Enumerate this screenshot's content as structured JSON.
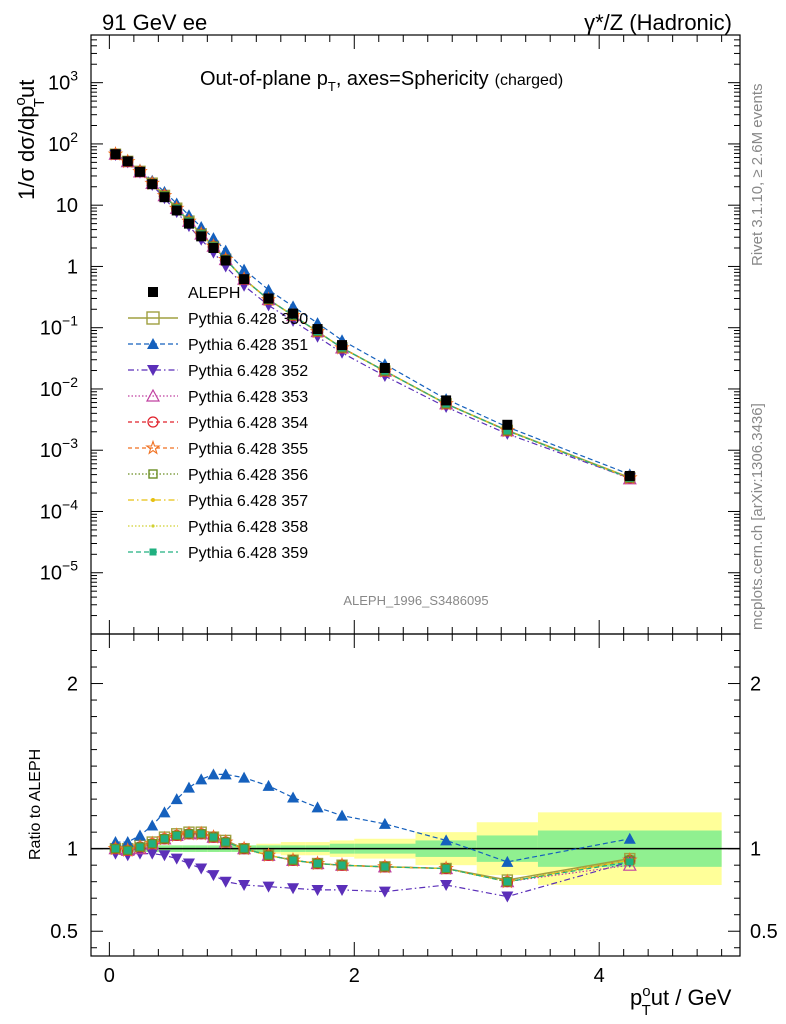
{
  "header": {
    "left": "91 GeV ee",
    "right": "γ*/Z (Hadronic)"
  },
  "side": {
    "rivet": "Rivet 3.1.10, ≥ 2.6M events",
    "mcplots": "mcplots.cern.ch [arXiv:1306.3436]"
  },
  "colors": {
    "data": "#000000",
    "350": "#a0a040",
    "351": "#1560bd",
    "352": "#5b2fb9",
    "353": "#c040a0",
    "354": "#e0202a",
    "355": "#f07020",
    "356": "#6b8e23",
    "357": "#e6c010",
    "358": "#d0d030",
    "359": "#20b080",
    "band_inner": "#90f090",
    "band_outer": "#ffff99"
  },
  "chart_data": {
    "type": "line",
    "title": "Out-of-plane p",
    "title_sub": "T",
    "title_rest": ", axes=Sphericity",
    "title_small": "(charged)",
    "watermark": "ALEPH_1996_S3486095",
    "ylabel": "1/σ dσ/dp",
    "ylabel_sup": "o",
    "ylabel_sub": "T",
    "ylabel_rest": "ut",
    "xlabel_main": "p",
    "xlabel_sup": "o",
    "xlabel_sub": "T",
    "xlabel_rest": "ut / GeV",
    "ratio_ylabel": "Ratio to ALEPH",
    "xlim": [
      -0.15,
      5.15
    ],
    "ylim_log": [
      1e-06,
      6000
    ],
    "ratio_ylim": [
      0.35,
      2.3
    ],
    "x_ticks": [
      "0",
      "2",
      "4"
    ],
    "y_ticks": [
      {
        "v": 1000,
        "m": "10",
        "e": "3"
      },
      {
        "v": 100,
        "m": "10",
        "e": "2"
      },
      {
        "v": 10,
        "m": "10",
        "e": ""
      },
      {
        "v": 1,
        "m": "1",
        "e": ""
      },
      {
        "v": 0.1,
        "m": "10",
        "e": "−1"
      },
      {
        "v": 0.01,
        "m": "10",
        "e": "−2"
      },
      {
        "v": 0.001,
        "m": "10",
        "e": "−3"
      },
      {
        "v": 0.0001,
        "m": "10",
        "e": "−4"
      },
      {
        "v": 1e-05,
        "m": "10",
        "e": "−5"
      }
    ],
    "ratio_ticks": [
      {
        "v": 2,
        "label": "2"
      },
      {
        "v": 1,
        "label": "1"
      },
      {
        "v": 0.5,
        "label": "0.5"
      }
    ],
    "x": [
      0.05,
      0.15,
      0.25,
      0.35,
      0.45,
      0.55,
      0.65,
      0.75,
      0.85,
      0.95,
      1.1,
      1.3,
      1.5,
      1.7,
      1.9,
      2.25,
      2.75,
      3.25,
      4.25
    ],
    "aleph": [
      68,
      52,
      35,
      22,
      13.5,
      8.2,
      5.0,
      3.1,
      2.0,
      1.25,
      0.62,
      0.3,
      0.17,
      0.095,
      0.052,
      0.022,
      0.0065,
      0.0026,
      0.00038
    ],
    "band_edges": [
      0,
      0.1,
      0.2,
      0.3,
      0.4,
      0.5,
      0.6,
      0.7,
      0.8,
      0.9,
      1.0,
      1.2,
      1.4,
      1.6,
      1.8,
      2.0,
      2.5,
      3.0,
      3.5,
      5.0
    ],
    "band_inner": [
      0.02,
      0.02,
      0.02,
      0.02,
      0.02,
      0.02,
      0.02,
      0.02,
      0.02,
      0.02,
      0.02,
      0.02,
      0.02,
      0.02,
      0.03,
      0.03,
      0.05,
      0.08,
      0.11
    ],
    "band_outer": [
      0.02,
      0.02,
      0.02,
      0.02,
      0.02,
      0.02,
      0.02,
      0.02,
      0.02,
      0.02,
      0.02,
      0.03,
      0.04,
      0.04,
      0.05,
      0.06,
      0.1,
      0.16,
      0.22
    ],
    "series": [
      {
        "name": "Pythia 6.428 350",
        "key": "350",
        "marker": "square-open",
        "dash": "",
        "width": 1.5,
        "ratio": [
          1.0,
          1.0,
          1.02,
          1.04,
          1.07,
          1.09,
          1.1,
          1.1,
          1.07,
          1.05,
          1.0,
          0.96,
          0.93,
          0.91,
          0.9,
          0.89,
          0.88,
          0.81,
          0.94
        ]
      },
      {
        "name": "Pythia 6.428 351",
        "key": "351",
        "marker": "triangle-up",
        "dash": "5,3",
        "width": 1.2,
        "ratio": [
          1.04,
          1.04,
          1.08,
          1.14,
          1.22,
          1.3,
          1.37,
          1.42,
          1.45,
          1.45,
          1.43,
          1.38,
          1.31,
          1.25,
          1.2,
          1.15,
          1.05,
          0.92,
          1.06
        ]
      },
      {
        "name": "Pythia 6.428 352",
        "key": "352",
        "marker": "triangle-down",
        "dash": "6,3,1.5,3",
        "width": 1.2,
        "ratio": [
          0.97,
          0.96,
          0.97,
          0.97,
          0.96,
          0.94,
          0.91,
          0.88,
          0.84,
          0.8,
          0.78,
          0.77,
          0.76,
          0.75,
          0.75,
          0.74,
          0.78,
          0.71,
          0.92
        ]
      },
      {
        "name": "Pythia 6.428 353",
        "key": "353",
        "marker": "triangle-up-open",
        "dash": "1.5,2",
        "width": 1.2,
        "ratio": [
          1.0,
          0.99,
          1.0,
          1.03,
          1.06,
          1.08,
          1.09,
          1.09,
          1.07,
          1.04,
          1.0,
          0.96,
          0.93,
          0.91,
          0.9,
          0.89,
          0.88,
          0.8,
          0.9
        ]
      },
      {
        "name": "Pythia 6.428 354",
        "key": "354",
        "marker": "circle-open",
        "dash": "4,3",
        "width": 1.2,
        "ratio": [
          1.0,
          0.99,
          1.01,
          1.03,
          1.06,
          1.08,
          1.09,
          1.09,
          1.07,
          1.04,
          1.0,
          0.96,
          0.93,
          0.91,
          0.9,
          0.89,
          0.88,
          0.8,
          0.93
        ]
      },
      {
        "name": "Pythia 6.428 355",
        "key": "355",
        "marker": "star-open",
        "dash": "4,3",
        "width": 1.2,
        "ratio": [
          1.0,
          0.99,
          1.01,
          1.03,
          1.06,
          1.08,
          1.09,
          1.09,
          1.07,
          1.04,
          1.0,
          0.96,
          0.93,
          0.91,
          0.9,
          0.89,
          0.88,
          0.8,
          0.93
        ]
      },
      {
        "name": "Pythia 6.428 356",
        "key": "356",
        "marker": "square-open-small",
        "dash": "1.5,2",
        "width": 1.2,
        "ratio": [
          1.0,
          0.99,
          1.01,
          1.03,
          1.06,
          1.08,
          1.09,
          1.09,
          1.07,
          1.04,
          1.0,
          0.96,
          0.93,
          0.91,
          0.9,
          0.89,
          0.88,
          0.8,
          0.93
        ]
      },
      {
        "name": "Pythia 6.428 357",
        "key": "357",
        "marker": "dot",
        "dash": "6,3,1.5,3",
        "width": 1.2,
        "ratio": [
          1.0,
          0.99,
          1.01,
          1.03,
          1.06,
          1.08,
          1.09,
          1.09,
          1.07,
          1.04,
          1.0,
          0.96,
          0.93,
          0.91,
          0.9,
          0.89,
          0.88,
          0.8,
          0.93
        ]
      },
      {
        "name": "Pythia 6.428 358",
        "key": "358",
        "marker": "dot-small",
        "dash": "1.5,2",
        "width": 1.2,
        "ratio": [
          1.0,
          0.99,
          1.01,
          1.03,
          1.06,
          1.08,
          1.09,
          1.09,
          1.07,
          1.04,
          1.0,
          0.96,
          0.93,
          0.91,
          0.9,
          0.89,
          0.88,
          0.8,
          0.93
        ]
      },
      {
        "name": "Pythia 6.428 359",
        "key": "359",
        "marker": "square-filled",
        "dash": "5,3",
        "width": 1.2,
        "ratio": [
          1.0,
          0.99,
          1.01,
          1.03,
          1.06,
          1.08,
          1.09,
          1.09,
          1.07,
          1.04,
          1.0,
          0.96,
          0.93,
          0.91,
          0.9,
          0.89,
          0.88,
          0.8,
          0.92
        ]
      }
    ],
    "legend": {
      "data_label": "ALEPH",
      "placement": "middle-left"
    }
  }
}
